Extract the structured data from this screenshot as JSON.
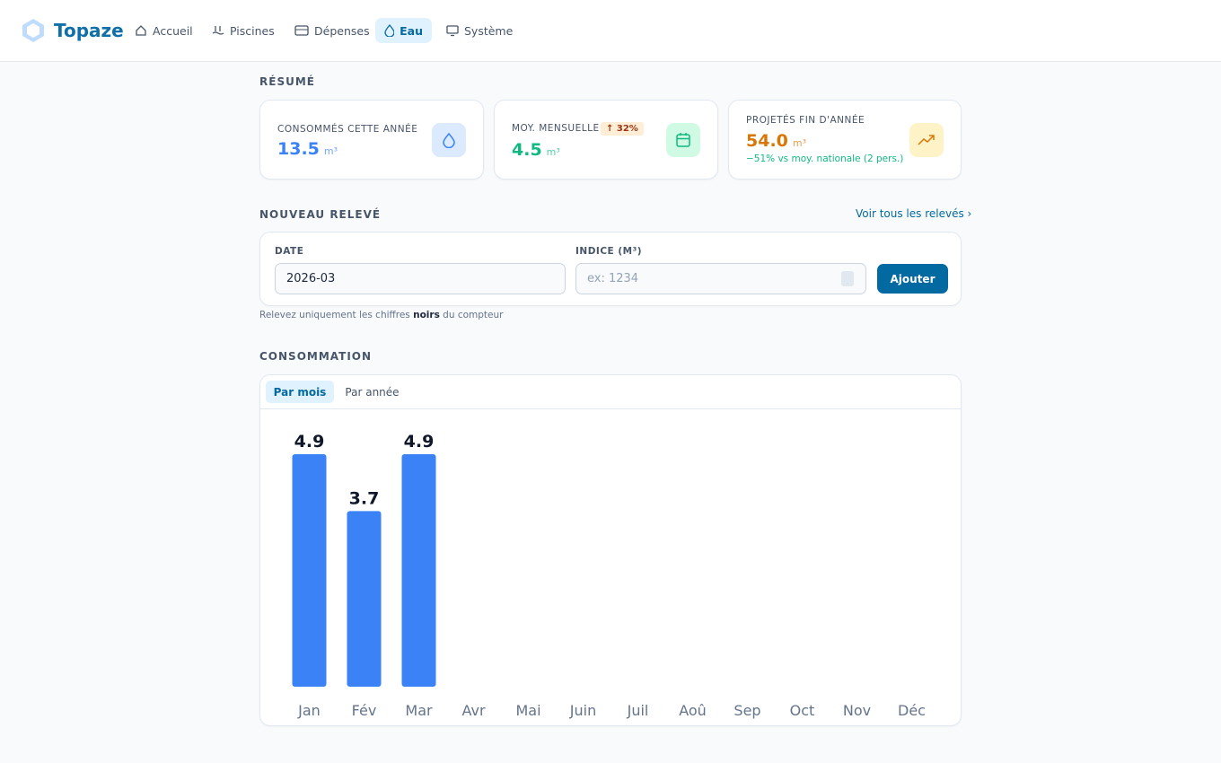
{
  "header": {
    "brand": "Topaze",
    "nav": [
      "Accueil",
      "Piscines",
      "Dépenses",
      "Eau",
      "Système"
    ]
  },
  "summary": {
    "title": "RÉSUMÉ",
    "cards": [
      {
        "label": "CONSOMMÉS CETTE ANNÉE",
        "value": "13.5",
        "unit": "m³"
      },
      {
        "label": "MOY. MENSUELLE",
        "badge": "↑ 32%",
        "value": "4.5",
        "unit": "m³"
      },
      {
        "label": "PROJETÉS FIN D'ANNÉE",
        "value": "54.0",
        "unit": "m³",
        "note": "−51% vs moy. nationale (2 pers.)"
      }
    ]
  },
  "reading": {
    "title": "NOUVEAU RELEVÉ",
    "link": "Voir tous les relevés",
    "date_label": "DATE",
    "date_value": "2026-03",
    "index_label": "INDICE (M³)",
    "index_placeholder": "ex: 1234",
    "button": "Ajouter",
    "hint": [
      "Relevez uniquement les chiffres ",
      "noirs",
      " du compteur"
    ]
  },
  "consumption": {
    "title": "CONSOMMATION",
    "tabs": [
      "Par mois",
      "Par année"
    ]
  },
  "chart_data": {
    "type": "bar",
    "categories": [
      "Jan",
      "Fév",
      "Mar",
      "Avr",
      "Mai",
      "Juin",
      "Juil",
      "Aoû",
      "Sep",
      "Oct",
      "Nov",
      "Déc"
    ],
    "values": [
      4.9,
      3.7,
      4.9,
      null,
      null,
      null,
      null,
      null,
      null,
      null,
      null,
      null
    ],
    "color": "#3b82f6"
  }
}
